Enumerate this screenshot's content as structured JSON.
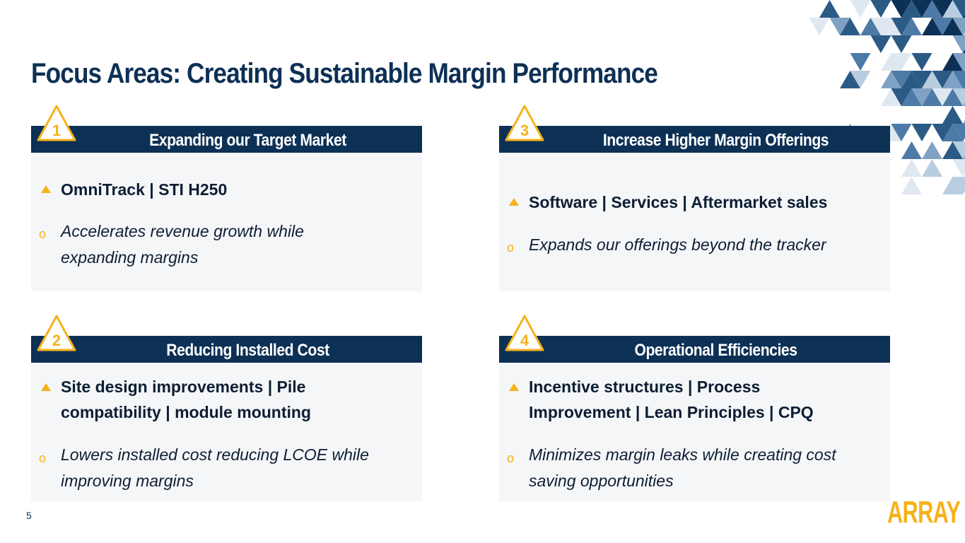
{
  "slide": {
    "title": "Focus Areas: Creating Sustainable Margin Performance",
    "page_number": "5",
    "logo_text": "ARRAY"
  },
  "colors": {
    "navy": "#0d3055",
    "accent_yellow": "#f6b21a",
    "card_background": "#f5f6f8"
  },
  "cards": [
    {
      "number": "1",
      "header": "Expanding our Target Market",
      "bold_bullet": "OmniTrack | STI H250",
      "italic_bullet": "Accelerates revenue growth while expanding margins"
    },
    {
      "number": "2",
      "header": "Reducing Installed Cost",
      "bold_bullet": "Site design improvements | Pile compatibility | module mounting",
      "italic_bullet": "Lowers installed cost reducing LCOE while improving margins"
    },
    {
      "number": "3",
      "header": "Increase Higher Margin Offerings",
      "bold_bullet": "Software | Services | Aftermarket sales",
      "italic_bullet": "Expands our offerings beyond the tracker"
    },
    {
      "number": "4",
      "header": "Operational Efficiencies",
      "bold_bullet": "Incentive structures | Process Improvement | Lean Principles | CPQ",
      "italic_bullet": "Minimizes margin leaks while creating cost saving opportunities"
    }
  ],
  "icons": {
    "number_badge": "warning-triangle-icon",
    "bullet_primary": "triangle-bullet-icon",
    "bullet_secondary": "circle-bullet-icon",
    "decoration": "triangle-mosaic-decoration"
  }
}
